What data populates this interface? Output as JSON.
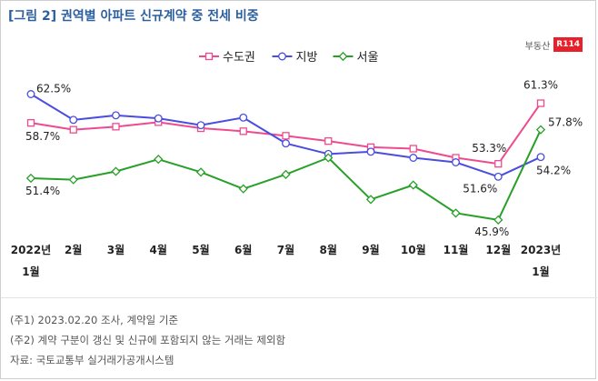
{
  "title": "[그림 2] 권역별 아파트 신규계약 중 전세 비중",
  "brand": {
    "text": "부동산",
    "badge": "R114"
  },
  "chart_data": {
    "type": "line",
    "categories": [
      [
        "2022년",
        "1월"
      ],
      [
        "2월"
      ],
      [
        "3월"
      ],
      [
        "4월"
      ],
      [
        "5월"
      ],
      [
        "6월"
      ],
      [
        "7월"
      ],
      [
        "8월"
      ],
      [
        "9월"
      ],
      [
        "10월"
      ],
      [
        "11월"
      ],
      [
        "12월"
      ],
      [
        "2023년",
        "1월"
      ]
    ],
    "series": [
      {
        "name": "수도권",
        "color": "#ee4b8f",
        "marker": "square",
        "values": [
          58.7,
          57.8,
          58.2,
          58.8,
          58.0,
          57.6,
          57.0,
          56.3,
          55.5,
          55.3,
          54.1,
          53.3,
          61.3
        ]
      },
      {
        "name": "지방",
        "color": "#4a4de0",
        "marker": "circle",
        "values": [
          62.5,
          59.1,
          59.7,
          59.3,
          58.4,
          59.4,
          56.0,
          54.6,
          54.9,
          54.1,
          53.5,
          51.6,
          54.2
        ]
      },
      {
        "name": "서울",
        "color": "#28a028",
        "marker": "diamond",
        "values": [
          51.4,
          51.2,
          52.3,
          53.9,
          52.2,
          50.0,
          51.9,
          54.1,
          48.6,
          50.5,
          46.8,
          45.9,
          57.8
        ]
      }
    ],
    "data_labels": [
      {
        "series": 0,
        "index": 0,
        "text": "58.7%"
      },
      {
        "series": 0,
        "index": 11,
        "text": "53.3%"
      },
      {
        "series": 0,
        "index": 12,
        "text": "61.3%"
      },
      {
        "series": 1,
        "index": 0,
        "text": "62.5%"
      },
      {
        "series": 1,
        "index": 11,
        "text": "51.6%"
      },
      {
        "series": 1,
        "index": 12,
        "text": "54.2%"
      },
      {
        "series": 2,
        "index": 0,
        "text": "51.4%"
      },
      {
        "series": 2,
        "index": 11,
        "text": "45.9%"
      },
      {
        "series": 2,
        "index": 12,
        "text": "57.8%"
      }
    ],
    "ylim": [
      40,
      70
    ],
    "grid": false,
    "legend_position": "top-center"
  },
  "footnotes": [
    "(주1) 2023.02.20 조사, 계약일 기준",
    "(주2) 계약 구분이 갱신 및 신규에 포함되지 않는 거래는 제외함",
    "자료: 국토교통부 실거래가공개시스템"
  ]
}
